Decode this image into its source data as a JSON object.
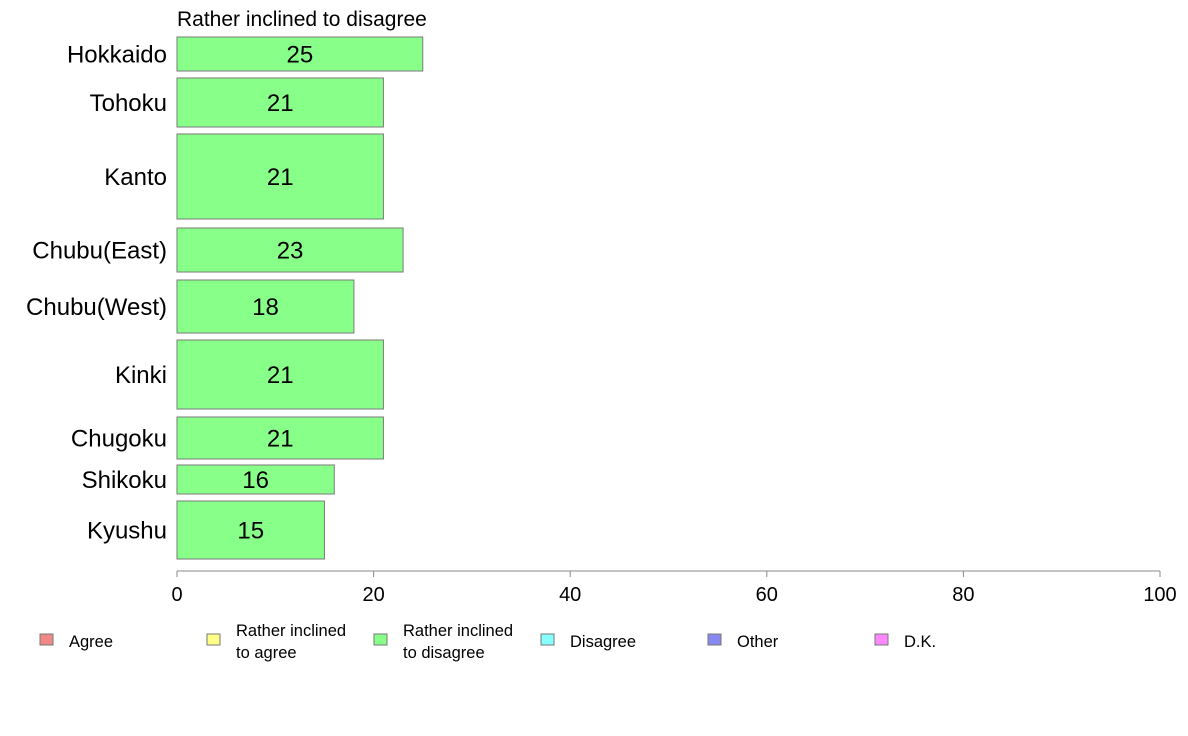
{
  "chart_data": {
    "type": "bar",
    "orientation": "horizontal",
    "title": "Rather inclined to disagree",
    "categories": [
      "Hokkaido",
      "Tohoku",
      "Kanto",
      "Chubu(East)",
      "Chubu(West)",
      "Kinki",
      "Chugoku",
      "Shikoku",
      "Kyushu"
    ],
    "series": [
      {
        "name": "Rather inclined to disagree",
        "values": [
          25,
          21,
          21,
          23,
          18,
          21,
          21,
          16,
          15
        ],
        "color": "#88ff88"
      }
    ],
    "xlim": [
      0,
      100
    ],
    "x_ticks": [
      0,
      20,
      40,
      60,
      80,
      100
    ],
    "grid": false,
    "legend_position": "bottom",
    "legend": [
      {
        "lines": [
          "Agree"
        ],
        "color": "#f08888"
      },
      {
        "lines": [
          "Rather inclined",
          "to agree"
        ],
        "color": "#ffff88"
      },
      {
        "lines": [
          "Rather inclined",
          "to disagree"
        ],
        "color": "#88ff88"
      },
      {
        "lines": [
          "Disagree"
        ],
        "color": "#88ffff"
      },
      {
        "lines": [
          "Other"
        ],
        "color": "#8888f0"
      },
      {
        "lines": [
          "D.K."
        ],
        "color": "#ff88ff"
      }
    ]
  }
}
